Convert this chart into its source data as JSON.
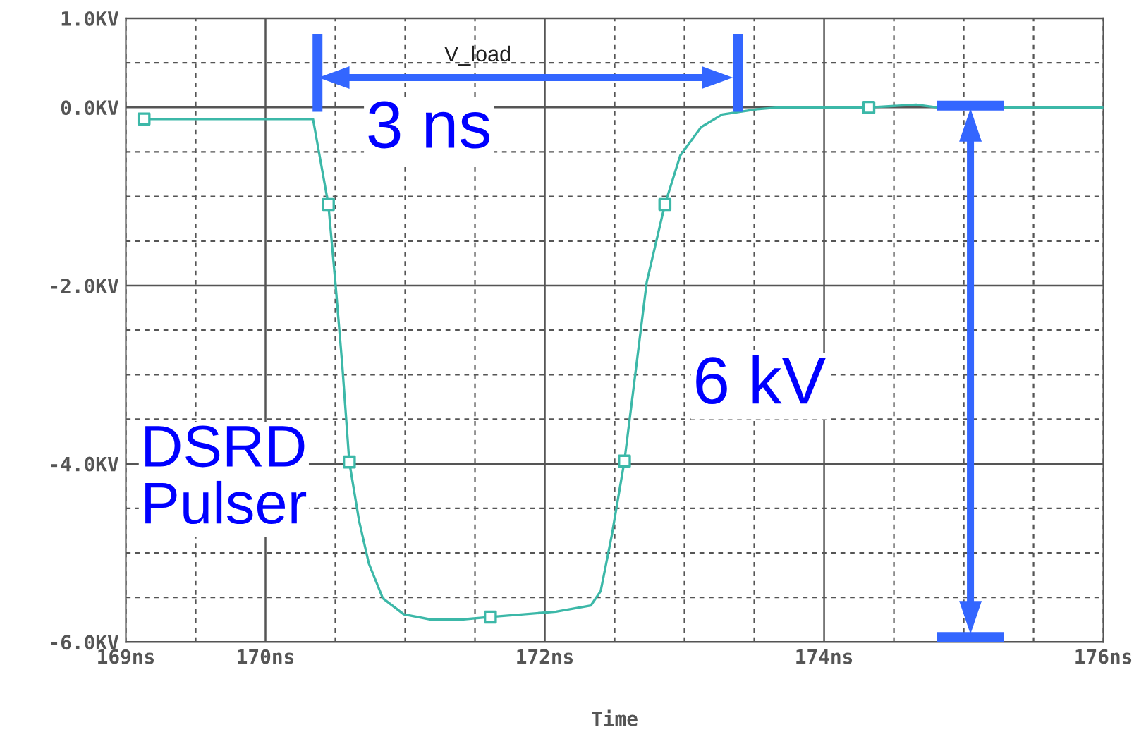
{
  "chart_data": {
    "type": "line",
    "xlabel": "Time",
    "series": [
      {
        "color": "#3cb8a8",
        "x": [
          169.13,
          170.34,
          170.45,
          170.5,
          170.55,
          170.6,
          170.67,
          170.74,
          170.84,
          170.99,
          171.19,
          171.39,
          171.61,
          172.08,
          172.33,
          172.4,
          172.48,
          172.57,
          172.63,
          172.73,
          172.86,
          172.97,
          173.12,
          173.27,
          173.52,
          173.67,
          174.32,
          174.66,
          174.81,
          176
        ],
        "values": [
          -0.13,
          -0.13,
          -1.09,
          -1.96,
          -2.9,
          -3.98,
          -4.64,
          -5.12,
          -5.51,
          -5.69,
          -5.75,
          -5.75,
          -5.72,
          -5.66,
          -5.59,
          -5.43,
          -4.8,
          -3.97,
          -3.22,
          -1.96,
          -1.09,
          -0.54,
          -0.22,
          -0.08,
          -0.02,
          0,
          0,
          0.03,
          0,
          0
        ]
      },
      {
        "type": "scatter",
        "marker": "square",
        "color": "#3cb8a8",
        "x": [
          169.13,
          170.45,
          170.6,
          171.61,
          172.57,
          172.86,
          174.32
        ],
        "values": [
          -0.13,
          -1.09,
          -3.98,
          -5.72,
          -3.97,
          -1.09,
          0
        ]
      }
    ],
    "xlim": [
      169,
      176
    ],
    "xticks": [
      {
        "value": 169,
        "label": "169ns"
      },
      {
        "value": 169.5,
        "label": null
      },
      {
        "value": 170,
        "label": "170ns"
      },
      {
        "value": 170.5,
        "label": null
      },
      {
        "value": 171,
        "label": null
      },
      {
        "value": 171.5,
        "label": null
      },
      {
        "value": 172,
        "label": "172ns"
      },
      {
        "value": 172.5,
        "label": null
      },
      {
        "value": 173,
        "label": null
      },
      {
        "value": 173.5,
        "label": null
      },
      {
        "value": 174,
        "label": "174ns"
      },
      {
        "value": 174.5,
        "label": null
      },
      {
        "value": 175,
        "label": null
      },
      {
        "value": 175.5,
        "label": null
      },
      {
        "value": 176,
        "label": "176ns"
      }
    ],
    "ylim": [
      -6,
      1
    ],
    "yticks": [
      {
        "value": -6,
        "label": "-6.0KV"
      },
      {
        "value": -5.5,
        "label": null
      },
      {
        "value": -5,
        "label": null
      },
      {
        "value": -4.5,
        "label": null
      },
      {
        "value": -4,
        "label": "-4.0KV"
      },
      {
        "value": -3.5,
        "label": null
      },
      {
        "value": -3,
        "label": null
      },
      {
        "value": -2.5,
        "label": null
      },
      {
        "value": -2,
        "label": "-2.0KV"
      },
      {
        "value": -1.5,
        "label": null
      },
      {
        "value": -1,
        "label": null
      },
      {
        "value": -0.5,
        "label": null
      },
      {
        "value": 0,
        "label": "0.0KV"
      },
      {
        "value": 0.5,
        "label": null
      },
      {
        "value": 1,
        "label": "1.0KV"
      }
    ],
    "grid": true,
    "annotations": [
      "V_load",
      "3 ns",
      "6 kV",
      "DSRD\nPulser"
    ]
  }
}
